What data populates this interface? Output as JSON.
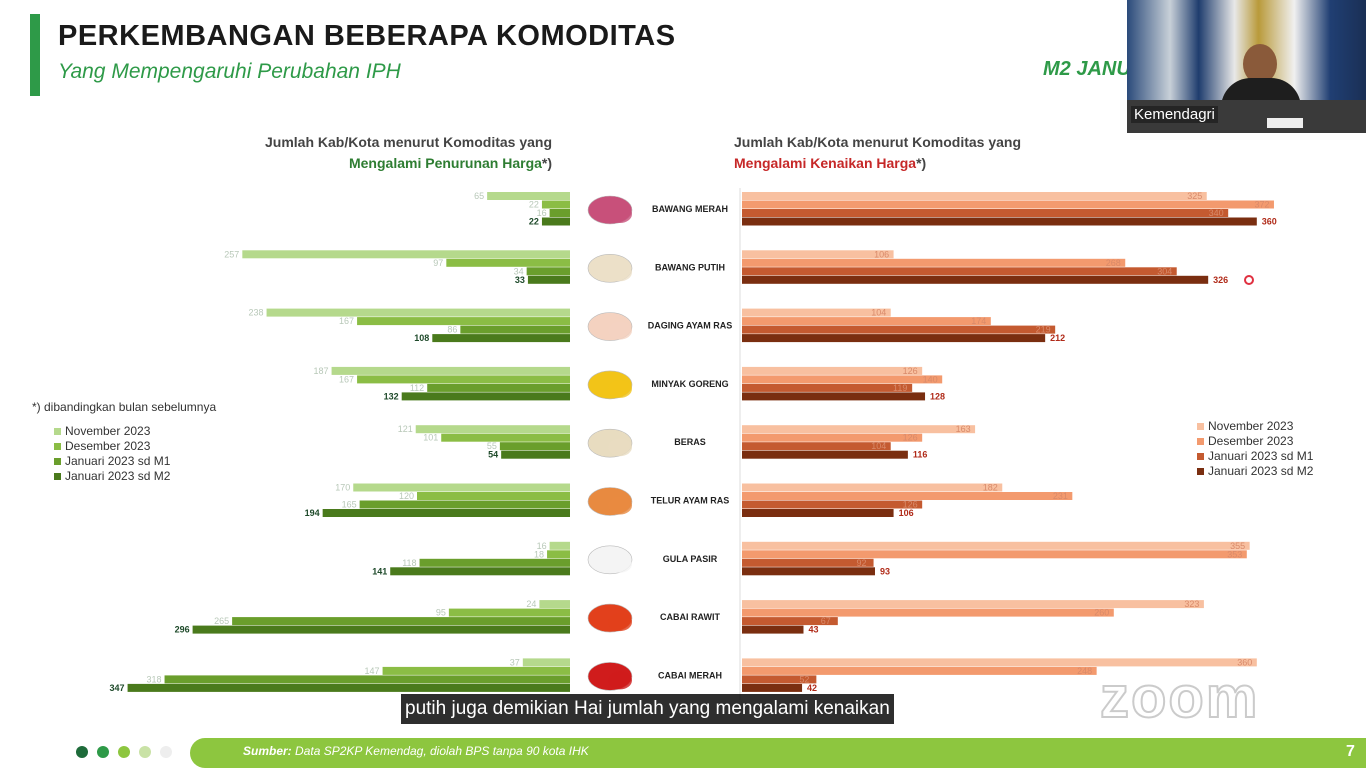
{
  "header": {
    "title": "PERKEMBANGAN BEBERAPA KOMODITAS",
    "subtitle": "Yang Mempengaruhi Perubahan IPH",
    "period": "M2 JANU"
  },
  "left_header": {
    "line1": "Jumlah Kab/Kota menurut Komoditas yang",
    "emph": "Mengalami Penurunan Harga",
    "suffix": "*)"
  },
  "right_header": {
    "line1": "Jumlah Kab/Kota menurut Komoditas yang",
    "emph": "Mengalami Kenaikan Harga",
    "suffix": "*)"
  },
  "footnote": "*) dibandingkan bulan sebelumnya",
  "legend_left": [
    "November 2023",
    "Desember 2023",
    "Januari 2023 sd M1",
    "Januari 2023 sd M2"
  ],
  "legend_right": [
    "November 2023",
    "Desember 2023",
    "Januari 2023 sd M1",
    "Januari 2023 sd M2"
  ],
  "colors": {
    "accent": "#2e9a48",
    "down": [
      "#b5d98c",
      "#8bbd45",
      "#6a9e2c",
      "#4a7a1c"
    ],
    "up": [
      "#f8c0a0",
      "#f39a6e",
      "#c45a30",
      "#7a2e10"
    ],
    "footer": "#8dc63f",
    "dots": [
      "#1e6b3a",
      "#2e9a48",
      "#8dc63f",
      "#c9e2a6",
      "#eeeeee"
    ]
  },
  "chart_data": {
    "type": "bar",
    "orientation": "horizontal",
    "categories": [
      "BAWANG MERAH",
      "BAWANG PUTIH",
      "DAGING AYAM RAS",
      "MINYAK GORENG",
      "BERAS",
      "TELUR AYAM RAS",
      "GULA PASIR",
      "CABAI RAWIT",
      "CABAI MERAH"
    ],
    "icons": [
      "shallot-icon",
      "garlic-icon",
      "chicken-icon",
      "cooking-oil-icon",
      "rice-icon",
      "egg-icon",
      "sugar-icon",
      "chili-rawit-icon",
      "chili-red-icon"
    ],
    "penurunan_harga": {
      "series": [
        {
          "name": "November 2023",
          "values": [
            65,
            257,
            238,
            187,
            121,
            170,
            16,
            24,
            37
          ]
        },
        {
          "name": "Desember 2023",
          "values": [
            22,
            97,
            167,
            167,
            101,
            120,
            18,
            95,
            147
          ]
        },
        {
          "name": "Januari 2023 sd M1",
          "values": [
            16,
            34,
            86,
            112,
            55,
            165,
            118,
            265,
            318
          ]
        },
        {
          "name": "Januari 2023 sd M2",
          "values": [
            22,
            33,
            108,
            132,
            54,
            194,
            141,
            296,
            347
          ]
        }
      ]
    },
    "kenaikan_harga": {
      "series": [
        {
          "name": "November 2023",
          "values": [
            325,
            106,
            104,
            126,
            163,
            182,
            355,
            323,
            360
          ]
        },
        {
          "name": "Desember 2023",
          "values": [
            372,
            268,
            174,
            140,
            126,
            231,
            353,
            260,
            248
          ]
        },
        {
          "name": "Januari 2023 sd M1",
          "values": [
            340,
            304,
            219,
            119,
            104,
            126,
            92,
            67,
            52
          ]
        },
        {
          "name": "Januari 2023 sd M2",
          "values": [
            360,
            326,
            212,
            128,
            116,
            106,
            93,
            43,
            42
          ]
        }
      ]
    }
  },
  "video": {
    "label": "Kemendagri"
  },
  "caption": "putih juga demikian Hai jumlah yang mengalami kenaikan",
  "watermark": "zoom",
  "footer": {
    "source_label": "Sumber:",
    "source_text": " Data SP2KP Kemendag, diolah BPS tanpa 90 kota IHK",
    "page": "7"
  }
}
